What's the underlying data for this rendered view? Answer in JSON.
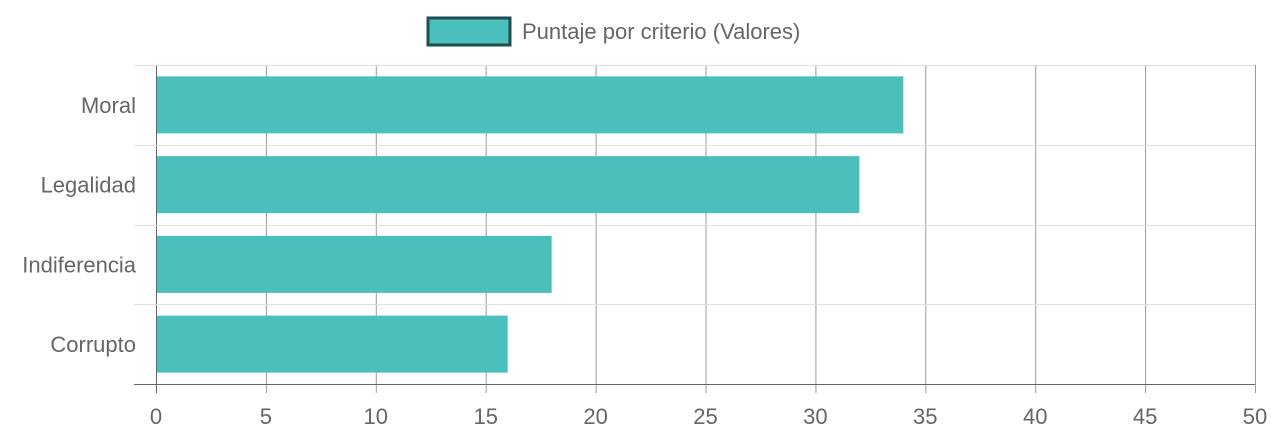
{
  "chart_data": {
    "type": "bar",
    "orientation": "horizontal",
    "categories": [
      "Moral",
      "Legalidad",
      "Indiferencia",
      "Corrupto"
    ],
    "series": [
      {
        "name": "Puntaje por criterio (Valores)",
        "values": [
          34,
          32,
          18,
          16
        ]
      }
    ],
    "xlim": [
      0,
      50
    ],
    "x_ticks": [
      0,
      5,
      10,
      15,
      20,
      25,
      30,
      35,
      40,
      45,
      50
    ],
    "grid": true,
    "legend": "top-center",
    "colors": {
      "bar_fill": "#4ABFBC",
      "legend_border": "#1F4F4E",
      "grid": "#999999",
      "grid_light": "#E0E0E0",
      "text": "#666666"
    }
  }
}
